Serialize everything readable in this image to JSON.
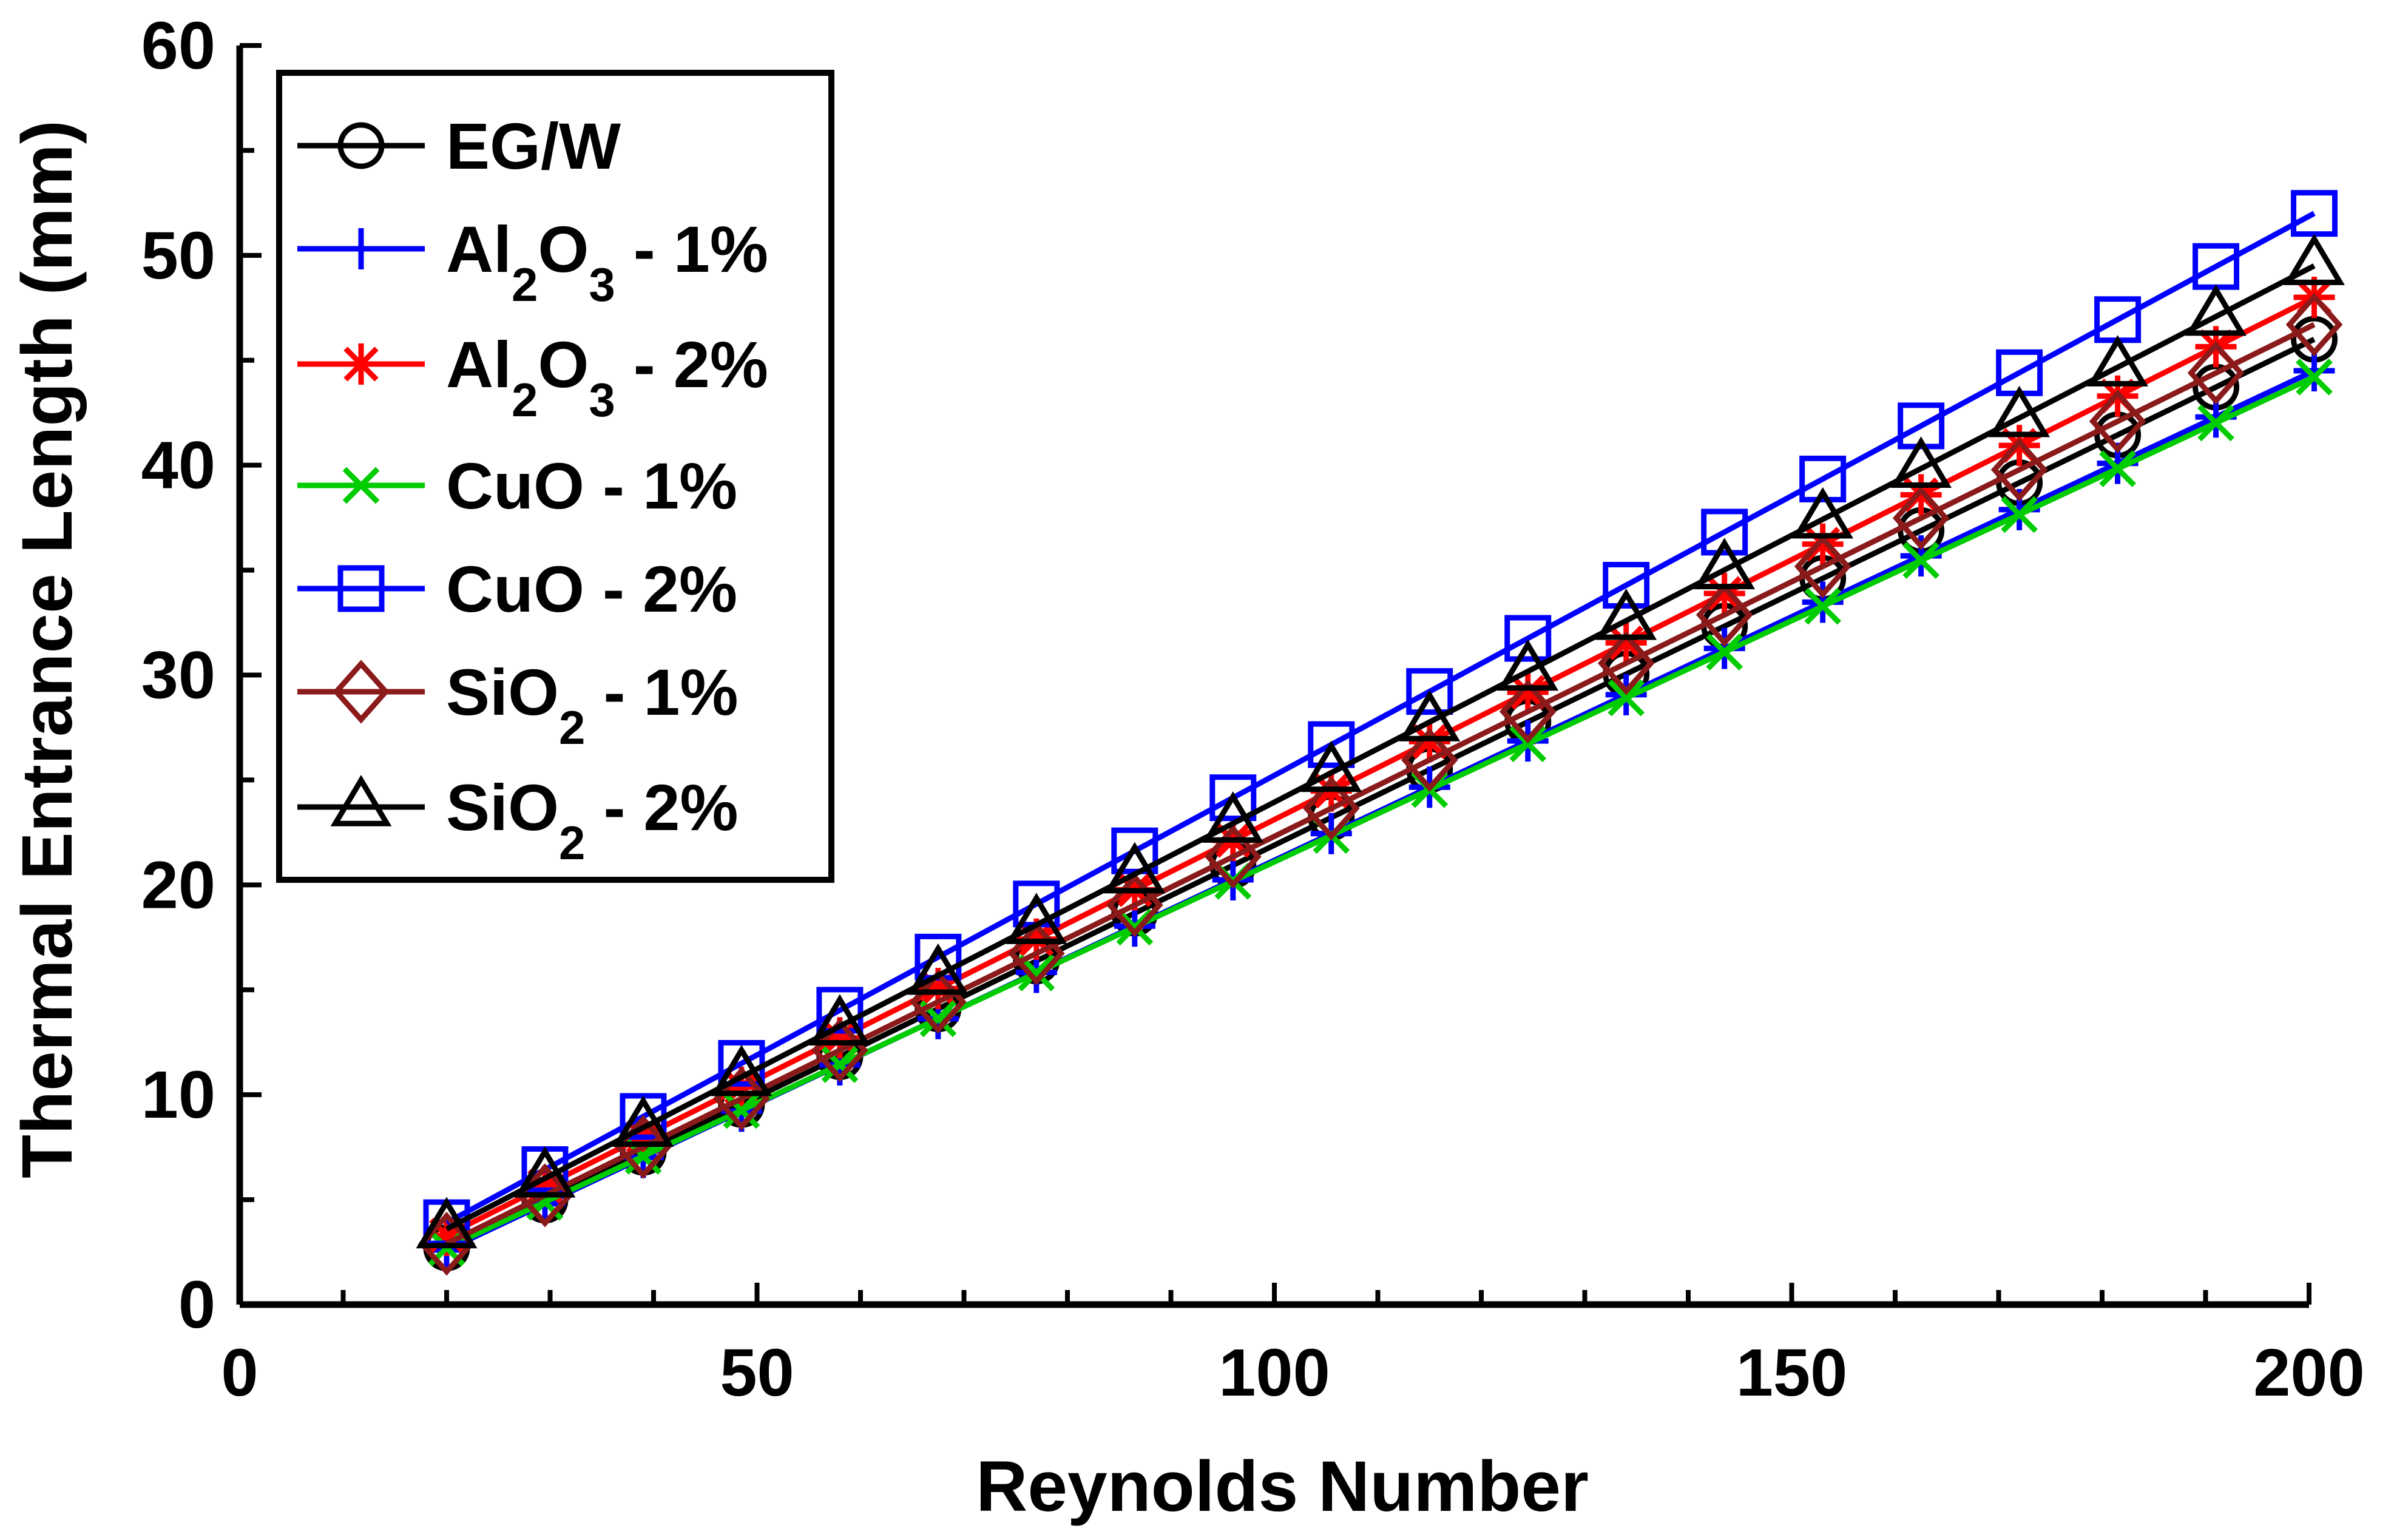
{
  "chart_data": {
    "type": "line",
    "title": "",
    "xlabel": "Reynolds Number",
    "ylabel": "Thermal Entrance Length (mm)",
    "xlim": [
      0,
      200
    ],
    "ylim": [
      0,
      60
    ],
    "xticks": [
      0,
      50,
      100,
      150,
      200
    ],
    "yticks": [
      0,
      10,
      20,
      30,
      40,
      50,
      60
    ],
    "x": [
      20,
      29.5,
      39,
      48.5,
      58,
      67.5,
      77,
      86.5,
      96,
      105.5,
      115,
      124.5,
      134,
      143.5,
      153,
      162.5,
      172,
      181.5,
      191,
      200.5
    ],
    "grid": false,
    "legend_position": "top-left",
    "series": [
      {
        "name": "EG/W",
        "name_base": "EG/W",
        "name_suffix": "",
        "color": "#000000",
        "marker": "circle",
        "start": 2.7,
        "end": 46.0
      },
      {
        "name": "Al2O3 - 1%",
        "name_base": "Al",
        "name_sub1": "2",
        "name_mid": "O",
        "name_sub2": "3",
        "name_suffix": " - 1%",
        "color": "#0000ff",
        "marker": "plus",
        "start": 2.6,
        "end": 44.5
      },
      {
        "name": "Al2O3 - 2%",
        "name_base": "Al",
        "name_sub1": "2",
        "name_mid": "O",
        "name_sub2": "3",
        "name_suffix": " - 2%",
        "color": "#ff0000",
        "marker": "asterisk",
        "start": 3.3,
        "end": 48.0
      },
      {
        "name": "CuO - 1%",
        "name_base": "CuO",
        "name_suffix": " - 1%",
        "color": "#00cc00",
        "marker": "x",
        "start": 2.7,
        "end": 44.2
      },
      {
        "name": "CuO - 2%",
        "name_base": "CuO",
        "name_suffix": " - 2%",
        "color": "#0000ff",
        "marker": "square",
        "start": 3.9,
        "end": 52.0
      },
      {
        "name": "SiO2 - 1%",
        "name_base": "SiO",
        "name_sub1": "2",
        "name_suffix": " - 1%",
        "color": "#8b1a1a",
        "marker": "diamond",
        "start": 2.9,
        "end": 46.7
      },
      {
        "name": "SiO2 - 2%",
        "name_base": "SiO",
        "name_sub1": "2",
        "name_suffix": " - 2%",
        "color": "#000000",
        "marker": "triangle",
        "start": 3.6,
        "end": 49.5
      }
    ]
  }
}
